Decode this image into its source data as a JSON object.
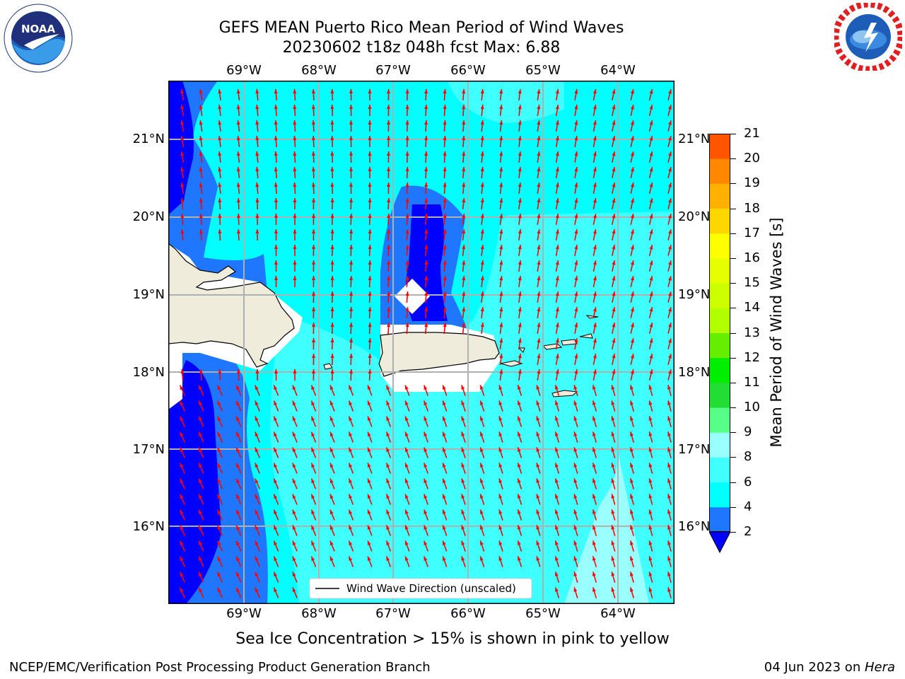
{
  "title_line1": "GEFS MEAN Puerto Rico Mean Period of Wind Waves",
  "title_line2": "20230602 t18z 048h fcst   Max: 6.88",
  "lon_labels": [
    "69°W",
    "68°W",
    "67°W",
    "66°W",
    "65°W",
    "64°W"
  ],
  "lat_labels": [
    "21°N",
    "20°N",
    "19°N",
    "18°N",
    "17°N",
    "16°N"
  ],
  "colorbar": {
    "title": "Mean Period of Wind Waves [s]",
    "ticks": [
      "2",
      "4",
      "6",
      "8",
      "9",
      "10",
      "11",
      "12",
      "13",
      "14",
      "15",
      "16",
      "17",
      "18",
      "19",
      "20",
      "21"
    ],
    "colors": [
      "#1f77ff",
      "#00ffff",
      "#40ffff",
      "#99ffff",
      "#55ff88",
      "#22dd33",
      "#00ee00",
      "#66ee00",
      "#b2ff00",
      "#ccff00",
      "#e6ff00",
      "#ffff00",
      "#ffd700",
      "#ffb000",
      "#ff8800",
      "#ff5500",
      "#ff2a00",
      "#ff0000"
    ],
    "under_color": "#0000ff"
  },
  "legend_label": "Wind Wave Direction (unscaled)",
  "caption": "Sea Ice Concentration > 15% is shown in pink to yellow",
  "footer_left": "NCEP/EMC/Verification Post Processing Product Generation Branch",
  "footer_date": "04 Jun 2023 on ",
  "footer_machine": "Hera",
  "logos": {
    "left": "noaa-logo",
    "right": "nws-logo"
  },
  "colors": {
    "arrows": "#ff0000",
    "land": "#efecdb",
    "grid": "#b0b0b0"
  }
}
